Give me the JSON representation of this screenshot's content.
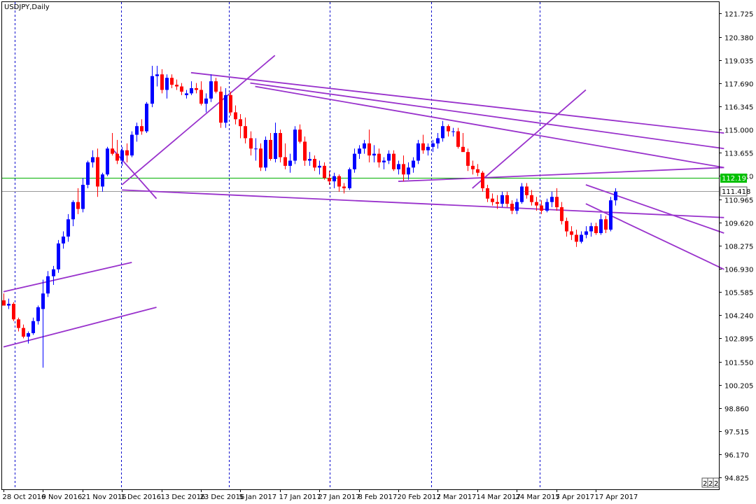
{
  "chart_data": {
    "type": "candlestick",
    "title": "USDJPY,Daily",
    "colors": {
      "up": "#0000ff",
      "down": "#ff0000",
      "trendline": "#9932cc",
      "separator": "#0000cc",
      "current_price": "#999999",
      "horizontal_level": "#00b000",
      "tag_green": "#00c000"
    },
    "ylim": [
      94.15,
      122.39
    ],
    "y_ticks": [
      "121.725",
      "120.380",
      "119.035",
      "117.690",
      "116.345",
      "115.000",
      "113.655",
      "112.310",
      "110.965",
      "109.620",
      "108.275",
      "106.930",
      "105.585",
      "104.240",
      "102.895",
      "101.550",
      "100.205",
      "98.860",
      "97.515",
      "96.170",
      "94.825"
    ],
    "x_ticks": [
      {
        "label": "28 Oct 2016",
        "bar": 0
      },
      {
        "label": "9 Nov 2016",
        "bar": 8
      },
      {
        "label": "21 Nov 2016",
        "bar": 16
      },
      {
        "label": "1 Dec 2016",
        "bar": 24
      },
      {
        "label": "13 Dec 2016",
        "bar": 32
      },
      {
        "label": "23 Dec 2016",
        "bar": 40
      },
      {
        "label": "5 Jan 2017",
        "bar": 48
      },
      {
        "label": "17 Jan 2017",
        "bar": 56
      },
      {
        "label": "27 Jan 2017",
        "bar": 64
      },
      {
        "label": "8 Feb 2017",
        "bar": 72
      },
      {
        "label": "20 Feb 2017",
        "bar": 80
      },
      {
        "label": "2 Mar 2017",
        "bar": 88
      },
      {
        "label": "14 Mar 2017",
        "bar": 96
      },
      {
        "label": "24 Mar 2017",
        "bar": 104
      },
      {
        "label": "5 Apr 2017",
        "bar": 112
      },
      {
        "label": "17 Apr 2017",
        "bar": 120
      }
    ],
    "period_separators": [
      2.3,
      23.9,
      45.7,
      66.1,
      86.6,
      108.7
    ],
    "current_price": {
      "value": 111.418,
      "label": "111.418"
    },
    "horizontal_level": {
      "value": 112.197,
      "label": "112.197"
    },
    "ohlc": [
      [
        105.1,
        105.5,
        104.8,
        104.8
      ],
      [
        104.8,
        105.2,
        104.6,
        104.9
      ],
      [
        104.9,
        105.0,
        103.9,
        104.0
      ],
      [
        104.0,
        104.1,
        103.3,
        103.5
      ],
      [
        103.5,
        103.7,
        102.9,
        103.0
      ],
      [
        103.0,
        103.3,
        102.6,
        103.2
      ],
      [
        103.2,
        104.1,
        103.1,
        103.9
      ],
      [
        103.9,
        104.8,
        103.7,
        104.7
      ],
      [
        104.6,
        106.3,
        101.2,
        105.5
      ],
      [
        105.5,
        106.8,
        105.3,
        106.5
      ],
      [
        106.5,
        107.1,
        106.0,
        106.9
      ],
      [
        106.9,
        108.6,
        106.7,
        108.4
      ],
      [
        108.4,
        109.1,
        108.1,
        108.8
      ],
      [
        108.8,
        110.1,
        108.5,
        109.8
      ],
      [
        109.8,
        110.9,
        109.4,
        110.8
      ],
      [
        110.8,
        111.6,
        110.1,
        110.4
      ],
      [
        110.4,
        112.2,
        110.2,
        111.8
      ],
      [
        111.8,
        113.2,
        111.6,
        113.1
      ],
      [
        113.1,
        113.8,
        112.8,
        113.4
      ],
      [
        113.4,
        113.9,
        111.1,
        111.7
      ],
      [
        111.7,
        112.5,
        111.4,
        112.4
      ],
      [
        112.4,
        114.0,
        112.3,
        113.9
      ],
      [
        113.9,
        114.8,
        113.5,
        113.6
      ],
      [
        113.6,
        114.4,
        113.0,
        113.2
      ],
      [
        113.2,
        114.0,
        112.9,
        113.8
      ],
      [
        113.8,
        114.2,
        113.1,
        113.5
      ],
      [
        113.5,
        114.9,
        113.4,
        114.7
      ],
      [
        114.7,
        115.4,
        114.3,
        115.2
      ],
      [
        115.2,
        115.6,
        114.7,
        114.9
      ],
      [
        114.9,
        116.6,
        114.8,
        116.5
      ],
      [
        116.5,
        118.7,
        116.3,
        118.1
      ],
      [
        118.1,
        118.7,
        117.5,
        118.2
      ],
      [
        118.2,
        118.5,
        117.1,
        117.3
      ],
      [
        117.3,
        118.2,
        116.8,
        118.0
      ],
      [
        118.0,
        118.2,
        117.4,
        117.6
      ],
      [
        117.6,
        117.9,
        117.3,
        117.5
      ],
      [
        117.5,
        117.7,
        117.0,
        117.2
      ],
      [
        117.0,
        117.3,
        116.8,
        117.1
      ],
      [
        117.1,
        117.8,
        117.0,
        117.4
      ],
      [
        117.4,
        117.7,
        117.1,
        117.3
      ],
      [
        117.3,
        117.8,
        116.4,
        116.5
      ],
      [
        116.5,
        117.1,
        116.0,
        116.8
      ],
      [
        116.8,
        118.2,
        116.6,
        117.8
      ],
      [
        117.8,
        118.0,
        117.1,
        117.2
      ],
      [
        117.2,
        117.5,
        115.1,
        115.4
      ],
      [
        115.4,
        117.4,
        115.1,
        117.0
      ],
      [
        117.0,
        117.2,
        115.8,
        116.0
      ],
      [
        116.0,
        116.4,
        115.3,
        115.6
      ],
      [
        115.6,
        115.9,
        114.5,
        115.2
      ],
      [
        115.2,
        115.7,
        114.2,
        114.5
      ],
      [
        114.5,
        114.9,
        113.5,
        113.9
      ],
      [
        113.9,
        114.5,
        113.2,
        113.9
      ],
      [
        113.9,
        114.2,
        112.6,
        112.8
      ],
      [
        112.8,
        114.6,
        112.6,
        114.4
      ],
      [
        114.4,
        114.8,
        113.2,
        113.3
      ],
      [
        113.3,
        115.4,
        113.1,
        114.8
      ],
      [
        114.8,
        115.0,
        113.1,
        113.4
      ],
      [
        113.4,
        114.2,
        112.7,
        112.9
      ],
      [
        112.9,
        113.6,
        112.5,
        113.2
      ],
      [
        113.2,
        115.2,
        113.0,
        115.0
      ],
      [
        115.0,
        115.3,
        114.2,
        114.3
      ],
      [
        114.3,
        114.6,
        112.9,
        113.2
      ],
      [
        113.2,
        113.7,
        112.9,
        113.3
      ],
      [
        113.3,
        113.5,
        112.6,
        112.8
      ],
      [
        112.8,
        113.2,
        112.4,
        112.9
      ],
      [
        112.9,
        113.1,
        112.1,
        112.2
      ],
      [
        112.2,
        112.6,
        111.8,
        112.0
      ],
      [
        112.0,
        112.5,
        111.6,
        112.3
      ],
      [
        112.3,
        112.4,
        111.4,
        111.7
      ],
      [
        111.7,
        111.9,
        111.3,
        111.6
      ],
      [
        111.6,
        112.8,
        111.5,
        112.7
      ],
      [
        112.7,
        113.9,
        112.5,
        113.6
      ],
      [
        113.6,
        114.1,
        113.3,
        113.9
      ],
      [
        113.9,
        114.4,
        113.6,
        114.2
      ],
      [
        114.2,
        115.0,
        113.1,
        113.5
      ],
      [
        113.5,
        114.1,
        113.1,
        113.6
      ],
      [
        113.6,
        113.9,
        112.8,
        113.1
      ],
      [
        113.1,
        113.4,
        112.7,
        113.2
      ],
      [
        113.2,
        113.8,
        113.0,
        113.6
      ],
      [
        113.6,
        113.8,
        112.6,
        112.7
      ],
      [
        112.7,
        113.2,
        112.4,
        113.0
      ],
      [
        113.0,
        113.5,
        112.0,
        112.4
      ],
      [
        112.4,
        113.1,
        112.1,
        112.8
      ],
      [
        112.8,
        113.4,
        112.5,
        113.2
      ],
      [
        113.2,
        114.4,
        113.0,
        114.2
      ],
      [
        114.2,
        114.7,
        113.6,
        113.8
      ],
      [
        113.8,
        114.2,
        113.5,
        114.0
      ],
      [
        114.0,
        114.4,
        113.7,
        114.2
      ],
      [
        114.2,
        114.8,
        113.9,
        114.5
      ],
      [
        114.5,
        115.5,
        114.3,
        115.2
      ],
      [
        115.2,
        115.3,
        114.6,
        114.9
      ],
      [
        114.9,
        115.1,
        114.6,
        114.9
      ],
      [
        114.9,
        115.1,
        113.9,
        114.0
      ],
      [
        114.0,
        114.8,
        113.8,
        113.7
      ],
      [
        113.7,
        113.9,
        112.6,
        112.9
      ],
      [
        112.9,
        113.2,
        112.4,
        112.7
      ],
      [
        112.7,
        113.0,
        112.3,
        112.5
      ],
      [
        112.5,
        112.6,
        111.4,
        111.6
      ],
      [
        111.6,
        111.8,
        110.8,
        111.0
      ],
      [
        111.0,
        111.3,
        110.6,
        110.8
      ],
      [
        110.8,
        111.2,
        110.4,
        110.7
      ],
      [
        110.7,
        111.4,
        110.5,
        111.2
      ],
      [
        111.2,
        111.4,
        110.5,
        110.7
      ],
      [
        110.7,
        110.9,
        110.1,
        110.3
      ],
      [
        110.3,
        111.0,
        110.1,
        110.8
      ],
      [
        110.8,
        111.9,
        110.7,
        111.7
      ],
      [
        111.7,
        111.9,
        111.0,
        111.2
      ],
      [
        111.2,
        111.5,
        110.6,
        110.8
      ],
      [
        110.8,
        111.1,
        110.3,
        110.6
      ],
      [
        110.6,
        110.9,
        110.1,
        110.3
      ],
      [
        110.3,
        111.0,
        110.2,
        110.8
      ],
      [
        110.8,
        111.4,
        110.5,
        111.1
      ],
      [
        111.1,
        111.6,
        110.3,
        110.5
      ],
      [
        110.5,
        110.8,
        109.5,
        109.7
      ],
      [
        109.7,
        109.9,
        108.8,
        109.1
      ],
      [
        109.1,
        109.4,
        108.6,
        108.9
      ],
      [
        108.9,
        109.2,
        108.2,
        108.5
      ],
      [
        108.5,
        109.1,
        108.4,
        108.9
      ],
      [
        108.9,
        109.4,
        108.7,
        109.1
      ],
      [
        109.1,
        109.6,
        108.8,
        109.4
      ],
      [
        109.4,
        109.6,
        108.9,
        109.0
      ],
      [
        109.0,
        110.1,
        108.9,
        109.8
      ],
      [
        109.8,
        110.0,
        109.0,
        109.2
      ],
      [
        109.2,
        111.1,
        109.1,
        110.9
      ],
      [
        110.9,
        111.6,
        110.6,
        111.4
      ]
    ],
    "trendlines": [
      [
        [
          0,
          105.6
        ],
        [
          26,
          107.3
        ]
      ],
      [
        [
          0,
          102.4
        ],
        [
          31,
          104.7
        ]
      ],
      [
        [
          22,
          113.9
        ],
        [
          31,
          111.0
        ]
      ],
      [
        [
          24,
          111.5
        ],
        [
          146,
          109.9
        ]
      ],
      [
        [
          24,
          111.8
        ],
        [
          55,
          119.3
        ]
      ],
      [
        [
          38,
          118.3
        ],
        [
          146,
          114.8
        ]
      ],
      [
        [
          50,
          117.7
        ],
        [
          146,
          113.9
        ]
      ],
      [
        [
          51,
          117.5
        ],
        [
          146,
          112.8
        ]
      ],
      [
        [
          80,
          112.0
        ],
        [
          146,
          112.8
        ]
      ],
      [
        [
          95,
          111.6
        ],
        [
          118,
          117.3
        ]
      ],
      [
        [
          118,
          111.8
        ],
        [
          146,
          109.0
        ]
      ],
      [
        [
          118,
          110.7
        ],
        [
          146,
          106.9
        ]
      ]
    ]
  }
}
